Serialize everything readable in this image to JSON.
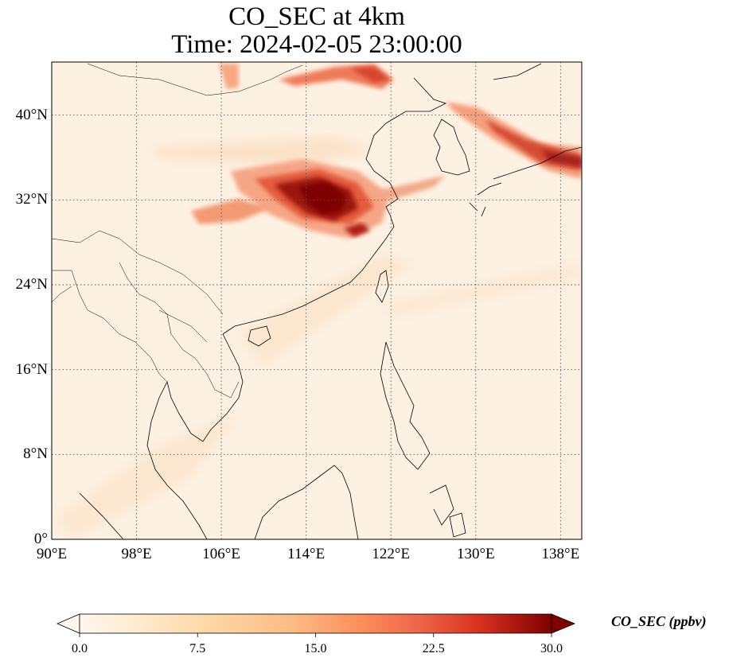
{
  "title_line1": "CO_SEC at 4km",
  "title_line2": "Time: 2024-02-05 23:00:00",
  "map": {
    "lon_range": [
      90,
      140
    ],
    "lat_range": [
      0,
      45
    ],
    "lat_ticks": [
      {
        "value": 0,
        "label": "0°"
      },
      {
        "value": 8,
        "label": "8°N"
      },
      {
        "value": 16,
        "label": "16°N"
      },
      {
        "value": 24,
        "label": "24°N"
      },
      {
        "value": 32,
        "label": "32°N"
      },
      {
        "value": 40,
        "label": "40°N"
      }
    ],
    "lon_ticks": [
      {
        "value": 90,
        "label": "90°E"
      },
      {
        "value": 98,
        "label": "98°E"
      },
      {
        "value": 106,
        "label": "106°E"
      },
      {
        "value": 114,
        "label": "114°E"
      },
      {
        "value": 122,
        "label": "122°E"
      },
      {
        "value": 130,
        "label": "130°E"
      },
      {
        "value": 138,
        "label": "138°E"
      }
    ],
    "gridlines": "dotted",
    "colormap": "OrRd",
    "colors": {
      "low": "#fff7ec",
      "mid": "#fdbb84",
      "high": "#7f0000",
      "coastline": "#000000"
    }
  },
  "colorbar": {
    "label": "CO_SEC (ppbv)",
    "range": [
      0,
      30
    ],
    "extend": "both",
    "ticks": [
      {
        "value": 0,
        "label": "0.0"
      },
      {
        "value": 7.5,
        "label": "7.5"
      },
      {
        "value": 15,
        "label": "15.0"
      },
      {
        "value": 22.5,
        "label": "22.5"
      },
      {
        "value": 30,
        "label": "30.0"
      }
    ]
  }
}
